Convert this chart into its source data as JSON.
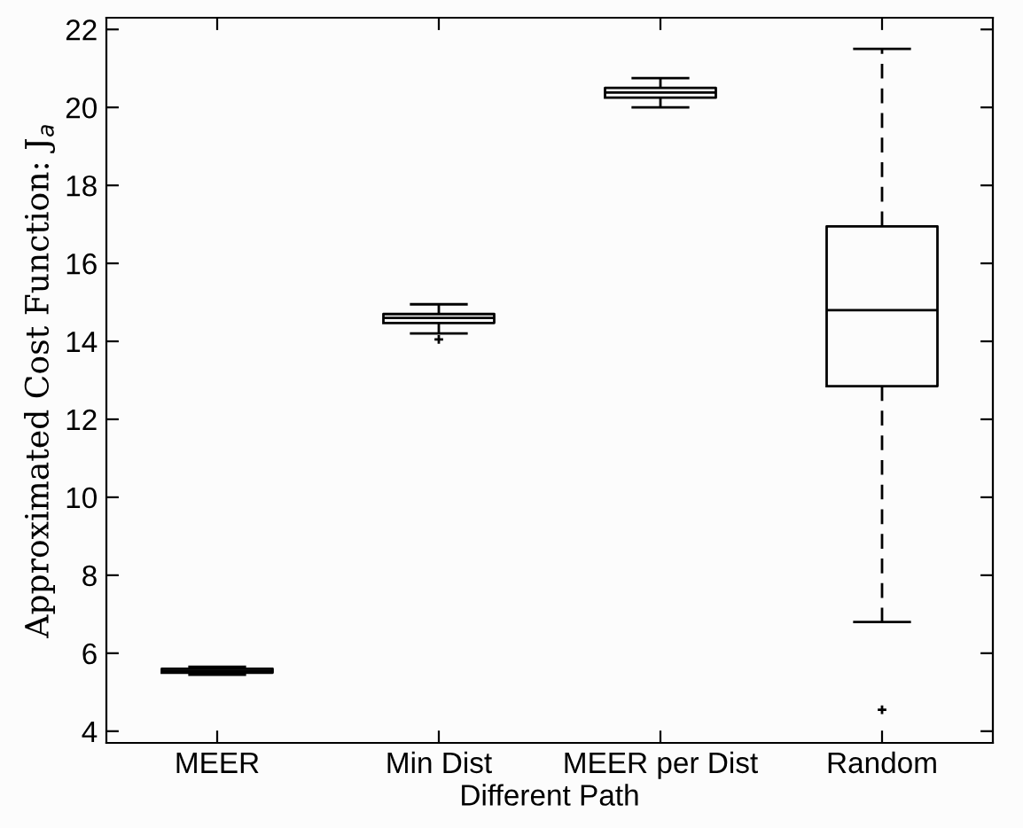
{
  "chart_data": {
    "type": "box",
    "xlabel": "Different Path",
    "ylabel": "Approximated Cost Function: J$_{a}$",
    "categories": [
      "MEER",
      "Min Dist",
      "MEER per Dist",
      "Random"
    ],
    "boxes": [
      {
        "low": 5.45,
        "q1": 5.5,
        "median": 5.55,
        "q3": 5.6,
        "high": 5.65
      },
      {
        "low": 14.2,
        "q1": 14.47,
        "median": 14.6,
        "q3": 14.7,
        "high": 14.95,
        "outliers": [
          14.05
        ]
      },
      {
        "low": 20.0,
        "q1": 20.25,
        "median": 20.38,
        "q3": 20.5,
        "high": 20.75
      },
      {
        "low": 6.8,
        "q1": 12.85,
        "median": 14.8,
        "q3": 16.95,
        "high": 21.5,
        "outliers": [
          4.55
        ]
      }
    ],
    "color": "#000000",
    "line_style": "dashed",
    "marker": "cross",
    "ylim": [
      3.7,
      22.3
    ],
    "yticks": [
      4,
      6,
      8,
      10,
      12,
      14,
      16,
      18,
      20,
      22
    ],
    "grid": false
  }
}
